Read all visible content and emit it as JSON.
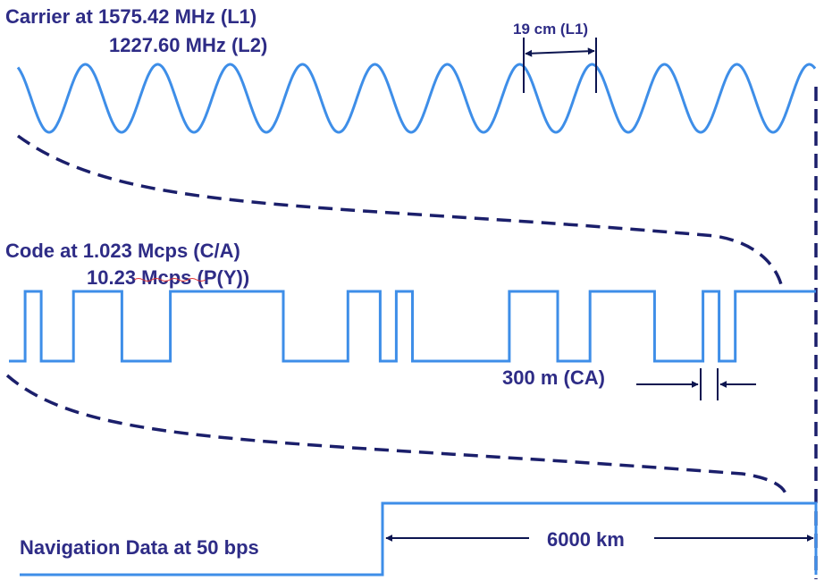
{
  "carrier": {
    "title": "Carrier at 1575.42 MHz (L1)",
    "second_line": "1227.60 MHz (L2)",
    "wavelength_label": "19 cm (L1)",
    "wave_color": "#3e8ee8"
  },
  "code": {
    "title": "Code at 1.023 Mcps (C/A)",
    "second_line": "10.23 Mcps (P(Y))",
    "chip_label": "300 m (CA)",
    "chips": [
      0,
      1,
      0,
      0,
      1,
      1,
      1,
      0,
      0,
      0,
      1,
      1,
      1,
      1,
      1,
      1,
      1,
      0,
      0,
      0,
      0,
      1,
      1,
      0,
      1,
      0,
      0,
      0,
      0,
      0,
      0,
      1,
      1,
      1,
      0,
      0,
      1,
      1,
      1,
      1,
      0,
      0,
      0,
      1,
      0,
      1,
      1,
      1,
      1,
      1
    ]
  },
  "nav": {
    "title": "Navigation Data at 50 bps",
    "length_label": "6000 km"
  },
  "colors": {
    "text": "#2e2c86",
    "signal": "#3e8ee8",
    "dashes": "#1b1f6b",
    "arrows": "#0c1550"
  }
}
